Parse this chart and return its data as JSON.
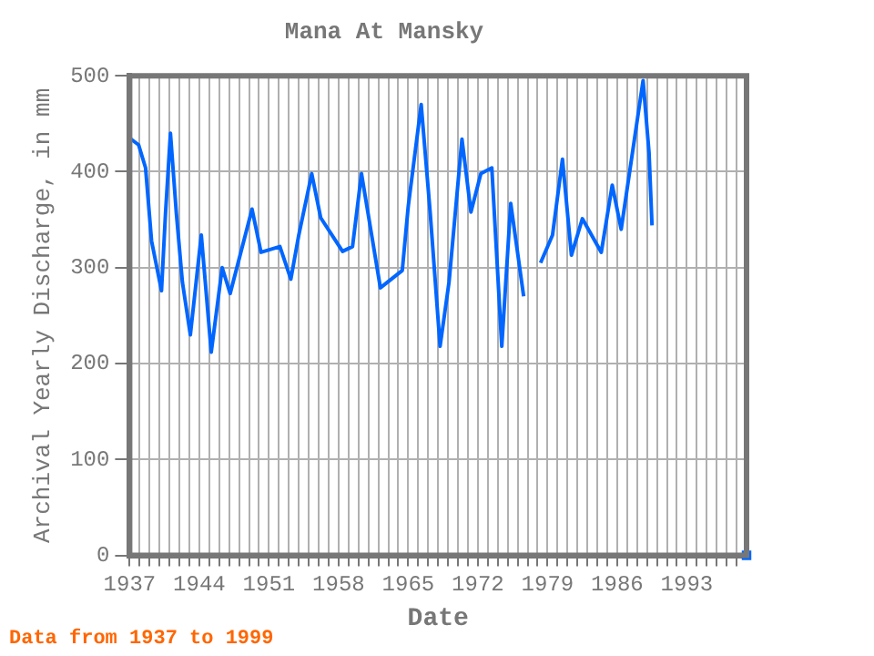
{
  "chart_data": {
    "type": "line",
    "title": "Mana At Mansky",
    "xlabel": "Date",
    "ylabel": "Archival Yearly Discharge, in mm",
    "annotations": [
      "Data from 1937 to 1999"
    ],
    "series": [
      {
        "color": "#0066ff",
        "x": [
          1937.0,
          1937.9,
          1938.6,
          1939.2,
          1940.2,
          1940.6,
          1941.1,
          1941.7,
          1942.3,
          1943.1,
          1944.2,
          1945.2,
          1946.3,
          1947.1,
          1949.3,
          1950.2,
          1952.1,
          1953.2,
          1954.0,
          1955.3,
          1956.2,
          1958.4,
          1959.4,
          1960.3,
          1962.2,
          1964.4,
          1965.0,
          1966.3,
          1967.2,
          1968.2,
          1969.1,
          1970.4,
          1971.3,
          1972.3,
          1973.4,
          1974.4,
          1975.3,
          1976.6,
          1977.5,
          1978.3,
          1979.5,
          1980.5,
          1981.4,
          1982.5,
          1984.4,
          1985.5,
          1986.4,
          1988.6,
          1989.2,
          1989.5
        ],
        "values": [
          435,
          428,
          404,
          328,
          276,
          356,
          440,
          356,
          285,
          230,
          334,
          212,
          300,
          273,
          361,
          316,
          322,
          288,
          334,
          398,
          352,
          317,
          322,
          398,
          279,
          297,
          364,
          470,
          358,
          218,
          285,
          434,
          358,
          398,
          404,
          218,
          367,
          270,
          null,
          305,
          334,
          413,
          313,
          351,
          316,
          386,
          340,
          495,
          420,
          344
        ]
      },
      {
        "type": "scatter",
        "marker": "square",
        "color": "#0066ff",
        "x": [
          1999
        ],
        "values": [
          0
        ]
      }
    ],
    "xlim": [
      1937,
      1999
    ],
    "xticks": [
      1937,
      {
        "value": 1938,
        "label": null
      },
      {
        "value": 1939,
        "label": null
      },
      {
        "value": 1940,
        "label": null
      },
      {
        "value": 1941,
        "label": null
      },
      {
        "value": 1942,
        "label": null
      },
      {
        "value": 1943,
        "label": null
      },
      1944,
      {
        "value": 1945,
        "label": null
      },
      {
        "value": 1946,
        "label": null
      },
      {
        "value": 1947,
        "label": null
      },
      {
        "value": 1948,
        "label": null
      },
      {
        "value": 1949,
        "label": null
      },
      {
        "value": 1950,
        "label": null
      },
      1951,
      {
        "value": 1952,
        "label": null
      },
      {
        "value": 1953,
        "label": null
      },
      {
        "value": 1954,
        "label": null
      },
      {
        "value": 1955,
        "label": null
      },
      {
        "value": 1956,
        "label": null
      },
      {
        "value": 1957,
        "label": null
      },
      1958,
      {
        "value": 1959,
        "label": null
      },
      {
        "value": 1960,
        "label": null
      },
      {
        "value": 1961,
        "label": null
      },
      {
        "value": 1962,
        "label": null
      },
      {
        "value": 1963,
        "label": null
      },
      {
        "value": 1964,
        "label": null
      },
      1965,
      {
        "value": 1966,
        "label": null
      },
      {
        "value": 1967,
        "label": null
      },
      {
        "value": 1968,
        "label": null
      },
      {
        "value": 1969,
        "label": null
      },
      {
        "value": 1970,
        "label": null
      },
      {
        "value": 1971,
        "label": null
      },
      1972,
      {
        "value": 1973,
        "label": null
      },
      {
        "value": 1974,
        "label": null
      },
      {
        "value": 1975,
        "label": null
      },
      {
        "value": 1976,
        "label": null
      },
      {
        "value": 1977,
        "label": null
      },
      {
        "value": 1978,
        "label": null
      },
      1979,
      {
        "value": 1980,
        "label": null
      },
      {
        "value": 1981,
        "label": null
      },
      {
        "value": 1982,
        "label": null
      },
      {
        "value": 1983,
        "label": null
      },
      {
        "value": 1984,
        "label": null
      },
      {
        "value": 1985,
        "label": null
      },
      1986,
      {
        "value": 1987,
        "label": null
      },
      {
        "value": 1988,
        "label": null
      },
      {
        "value": 1989,
        "label": null
      },
      {
        "value": 1990,
        "label": null
      },
      {
        "value": 1991,
        "label": null
      },
      {
        "value": 1992,
        "label": null
      },
      1993,
      {
        "value": 1994,
        "label": null
      },
      {
        "value": 1995,
        "label": null
      },
      {
        "value": 1996,
        "label": null
      },
      {
        "value": 1997,
        "label": null
      },
      {
        "value": 1998,
        "label": null
      }
    ],
    "ylim": [
      0,
      500
    ],
    "yticks": [
      0,
      100,
      200,
      300,
      400,
      500
    ],
    "grid": true,
    "legend": false,
    "line_style": "solid",
    "marker": "none"
  }
}
